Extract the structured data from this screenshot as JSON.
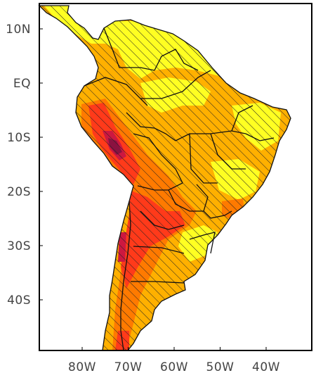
{
  "map": {
    "lat_labels": [
      {
        "text": "10N",
        "lat": 10
      },
      {
        "text": "EQ",
        "lat": 0
      },
      {
        "text": "10S",
        "lat": -10
      },
      {
        "text": "20S",
        "lat": -20
      },
      {
        "text": "30S",
        "lat": -30
      },
      {
        "text": "40S",
        "lat": -40
      }
    ],
    "lon_labels": [
      {
        "text": "80W",
        "lon": -80
      },
      {
        "text": "70W",
        "lon": -70
      },
      {
        "text": "60W",
        "lon": -60
      },
      {
        "text": "50W",
        "lon": -50
      },
      {
        "text": "40W",
        "lon": -40
      }
    ],
    "extent": {
      "lon_min": -89,
      "lon_max": -30,
      "lat_min": -50,
      "lat_max": 14
    },
    "fill_colors": {
      "light": "#ffff22",
      "medium": "#ffb000",
      "dark_orange": "#ff7a00",
      "red": "#ff3a1a",
      "crimson": "#cc1840",
      "maroon": "#8a1240"
    },
    "hatching": "diagonal lines over land",
    "background": "#ffffff"
  }
}
